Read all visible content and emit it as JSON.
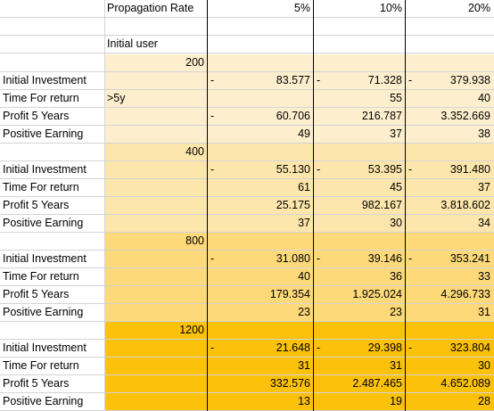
{
  "header": {
    "propagation_label": "Propagation Rate",
    "rates": [
      "5%",
      "10%",
      "20%"
    ]
  },
  "initial_user_label": "Initial user",
  "colors": [
    "#fdefce",
    "#fde6ab",
    "#fdd97a",
    "#fcc10a"
  ],
  "groups": [
    {
      "users": "200",
      "rows": [
        {
          "label": "Initial Investment",
          "c1": "",
          "c1dash": true,
          "c2": "83.577",
          "c2dash": true,
          "c3": "71.328",
          "c3dash": true,
          "c4": "379.938"
        },
        {
          "label": "Time For return",
          "c1": ">5y",
          "c1dash": false,
          "c2": "",
          "c2dash": false,
          "c3": "55",
          "c3dash": false,
          "c4": "40"
        },
        {
          "label": "Profit 5 Years",
          "c1": "",
          "c1dash": true,
          "c2": "60.706",
          "c2dash": false,
          "c3": "216.787",
          "c3dash": false,
          "c4": "3.352.669"
        },
        {
          "label": "Positive Earning",
          "c1": "",
          "c1dash": false,
          "c2": "49",
          "c2dash": false,
          "c3": "37",
          "c3dash": false,
          "c4": "38"
        }
      ]
    },
    {
      "users": "400",
      "rows": [
        {
          "label": "Initial Investment",
          "c1": "",
          "c1dash": true,
          "c2": "55.130",
          "c2dash": true,
          "c3": "53.395",
          "c3dash": true,
          "c4": "391.480"
        },
        {
          "label": "Time For return",
          "c1": "",
          "c1dash": false,
          "c2": "61",
          "c2dash": false,
          "c3": "45",
          "c3dash": false,
          "c4": "37"
        },
        {
          "label": "Profit 5 Years",
          "c1": "",
          "c1dash": false,
          "c2": "25.175",
          "c2dash": false,
          "c3": "982.167",
          "c3dash": false,
          "c4": "3.818.602"
        },
        {
          "label": "Positive Earning",
          "c1": "",
          "c1dash": false,
          "c2": "37",
          "c2dash": false,
          "c3": "30",
          "c3dash": false,
          "c4": "34"
        }
      ]
    },
    {
      "users": "800",
      "rows": [
        {
          "label": "Initial Investment",
          "c1": "",
          "c1dash": true,
          "c2": "31.080",
          "c2dash": true,
          "c3": "39.146",
          "c3dash": true,
          "c4": "353.241"
        },
        {
          "label": "Time For return",
          "c1": "",
          "c1dash": false,
          "c2": "40",
          "c2dash": false,
          "c3": "36",
          "c3dash": false,
          "c4": "33"
        },
        {
          "label": "Profit 5 Years",
          "c1": "",
          "c1dash": false,
          "c2": "179.354",
          "c2dash": false,
          "c3": "1.925.024",
          "c3dash": false,
          "c4": "4.296.733"
        },
        {
          "label": "Positive Earning",
          "c1": "",
          "c1dash": false,
          "c2": "23",
          "c2dash": false,
          "c3": "23",
          "c3dash": false,
          "c4": "31"
        }
      ]
    },
    {
      "users": "1200",
      "rows": [
        {
          "label": "Initial Investment",
          "c1": "",
          "c1dash": true,
          "c2": "21.648",
          "c2dash": true,
          "c3": "29.398",
          "c3dash": true,
          "c4": "323.804"
        },
        {
          "label": "Time For return",
          "c1": "",
          "c1dash": false,
          "c2": "31",
          "c2dash": false,
          "c3": "31",
          "c3dash": false,
          "c4": "30"
        },
        {
          "label": "Profit 5 Years",
          "c1": "",
          "c1dash": false,
          "c2": "332.576",
          "c2dash": false,
          "c3": "2.487.465",
          "c3dash": false,
          "c4": "4.652.089"
        },
        {
          "label": "Positive Earning",
          "c1": "",
          "c1dash": false,
          "c2": "13",
          "c2dash": false,
          "c3": "19",
          "c3dash": false,
          "c4": "28"
        }
      ]
    }
  ]
}
